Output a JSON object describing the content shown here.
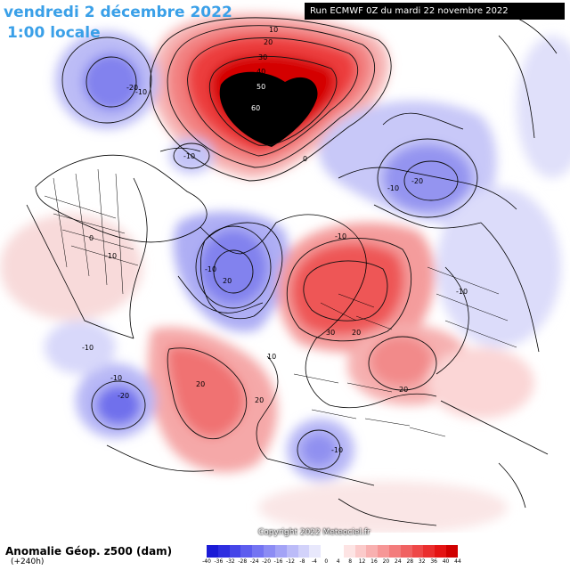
{
  "header": {
    "date": "vendredi 2 décembre 2022",
    "time": "1:00 locale",
    "run": "Run ECMWF 0Z du mardi 22 novembre 2022"
  },
  "footer": {
    "title": "Anomalie Géop. z500 (dam)",
    "subtitle": "(+240h)",
    "copyright": "Copyright 2022 Meteociel.fr"
  },
  "legend": {
    "colors": [
      "#1b1bd6",
      "#2e2ee0",
      "#4646e8",
      "#5d5dee",
      "#7474f2",
      "#8c8cf4",
      "#a3a3f6",
      "#bbbbf8",
      "#d2d2fa",
      "#e8e8fc",
      "#ffffff",
      "#ffffff",
      "#fde4e4",
      "#fbcaca",
      "#f8b0b0",
      "#f69696",
      "#f37c7c",
      "#f06262",
      "#ee4848",
      "#ea2e2e",
      "#e41414",
      "#d00000"
    ],
    "ticks": [
      "-40",
      "-36",
      "-32",
      "-28",
      "-24",
      "-20",
      "-16",
      "-12",
      "-8",
      "-4",
      "0",
      "4",
      "8",
      "12",
      "16",
      "20",
      "24",
      "28",
      "32",
      "36",
      "40",
      "44"
    ]
  },
  "contour_labels": [
    {
      "text": "10",
      "region": "alaska-high"
    },
    {
      "text": "20",
      "region": "alaska-high"
    },
    {
      "text": "30",
      "region": "alaska-high"
    },
    {
      "text": "40",
      "region": "alaska-high"
    },
    {
      "text": "50",
      "region": "alaska-high"
    },
    {
      "text": "60",
      "region": "alaska-high"
    },
    {
      "text": "-20",
      "region": "pacific-low"
    },
    {
      "text": "-10",
      "region": "pacific-low"
    },
    {
      "text": "-10",
      "region": "bering"
    },
    {
      "text": "0",
      "region": "arctic"
    },
    {
      "text": "-10",
      "region": "siberia"
    },
    {
      "text": "-20",
      "region": "siberia-low"
    },
    {
      "text": "0",
      "region": "canada"
    },
    {
      "text": "-10",
      "region": "canada"
    },
    {
      "text": "-10",
      "region": "hudson"
    },
    {
      "text": "20",
      "region": "greenland"
    },
    {
      "text": "-10",
      "region": "kara"
    },
    {
      "text": "30",
      "region": "scandinavia"
    },
    {
      "text": "20",
      "region": "scandinavia"
    },
    {
      "text": "10",
      "region": "atlantic"
    },
    {
      "text": "20",
      "region": "atlantic"
    },
    {
      "text": "20",
      "region": "europe"
    },
    {
      "text": "20",
      "region": "russia"
    },
    {
      "text": "-10",
      "region": "east-asia"
    },
    {
      "text": "-10",
      "region": "us-east"
    },
    {
      "text": "-10",
      "region": "atlantic-sw"
    },
    {
      "text": "-20",
      "region": "atlantic-sw"
    },
    {
      "text": "-10",
      "region": "mediterranean"
    }
  ]
}
